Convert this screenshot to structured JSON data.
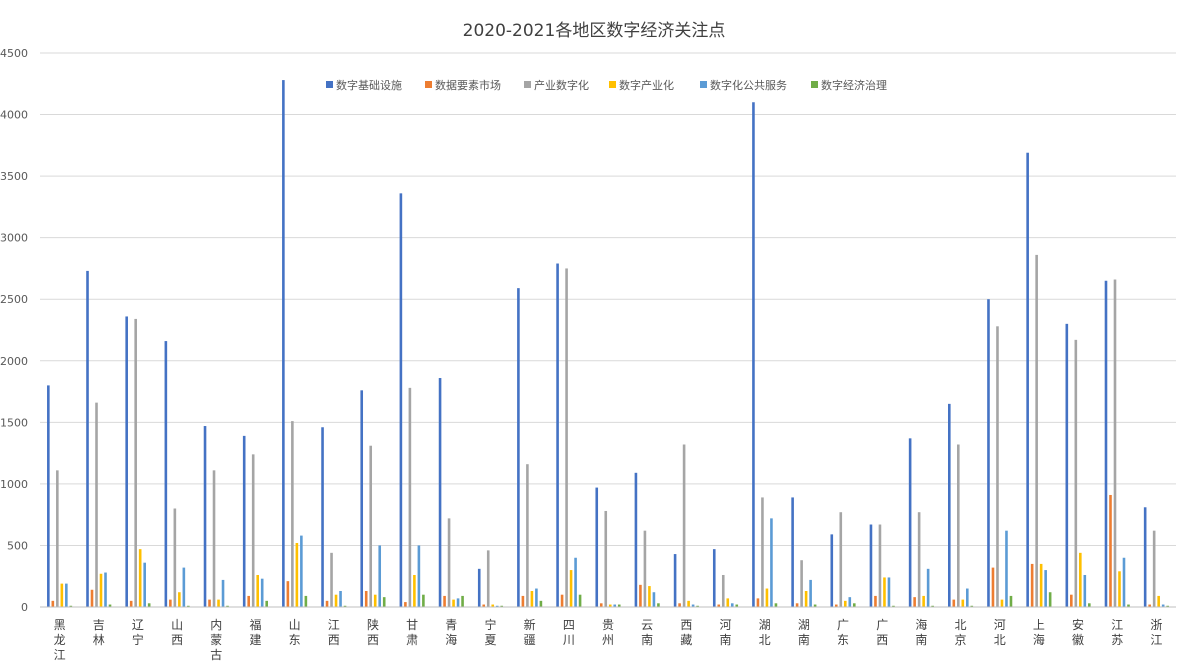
{
  "chart_data": {
    "type": "bar",
    "title": "2020-2021各地区数字经济关注点",
    "xlabel": "",
    "ylabel": "",
    "ylim": [
      0,
      4500
    ],
    "yticks": [
      0,
      500,
      1000,
      1500,
      2000,
      2500,
      3000,
      3500,
      4000,
      4500
    ],
    "grid": true,
    "legend_position": "top",
    "colors": [
      "#4472C4",
      "#ED7D31",
      "#A5A5A5",
      "#FFC000",
      "#5B9BD5",
      "#70AD47"
    ],
    "categories": [
      "黑龙江",
      "吉林",
      "辽宁",
      "山西",
      "内蒙古",
      "福建",
      "山东",
      "江西",
      "陕西",
      "甘肃",
      "青海",
      "宁夏",
      "新疆",
      "四川",
      "贵州",
      "云南",
      "西藏",
      "河南",
      "湖北",
      "湖南",
      "广东",
      "广西",
      "海南",
      "北京",
      "河北",
      "上海",
      "安徽",
      "江苏",
      "浙江"
    ],
    "series": [
      {
        "name": "数字基础设施",
        "values": [
          1800,
          2730,
          2360,
          2160,
          1470,
          1390,
          4280,
          1460,
          1760,
          3360,
          1860,
          310,
          2590,
          2790,
          970,
          1090,
          430,
          470,
          4100,
          890,
          590,
          670,
          1370,
          1650,
          2500,
          3690,
          2300,
          2650,
          810
        ]
      },
      {
        "name": "数据要素市场",
        "values": [
          50,
          140,
          50,
          60,
          60,
          90,
          210,
          50,
          130,
          40,
          90,
          20,
          90,
          100,
          30,
          180,
          30,
          20,
          70,
          30,
          20,
          90,
          80,
          60,
          320,
          350,
          100,
          910,
          20
        ]
      },
      {
        "name": "产业数字化",
        "values": [
          1110,
          1660,
          2340,
          800,
          1110,
          1240,
          1510,
          440,
          1310,
          1780,
          720,
          460,
          1160,
          2750,
          780,
          620,
          1320,
          260,
          890,
          380,
          770,
          670,
          770,
          1320,
          2280,
          2860,
          2170,
          2660,
          620
        ]
      },
      {
        "name": "数字产业化",
        "values": [
          190,
          270,
          470,
          120,
          60,
          260,
          520,
          100,
          100,
          260,
          60,
          20,
          130,
          300,
          20,
          170,
          50,
          70,
          150,
          130,
          50,
          240,
          90,
          60,
          60,
          350,
          440,
          290,
          90
        ]
      },
      {
        "name": "数字化公共服务",
        "values": [
          190,
          280,
          360,
          320,
          220,
          230,
          580,
          130,
          500,
          500,
          70,
          10,
          150,
          400,
          20,
          120,
          20,
          30,
          720,
          220,
          80,
          240,
          310,
          150,
          620,
          300,
          260,
          400,
          20
        ]
      },
      {
        "name": "数字经济治理",
        "values": [
          10,
          20,
          30,
          10,
          10,
          50,
          90,
          10,
          80,
          100,
          90,
          10,
          50,
          100,
          20,
          30,
          10,
          20,
          30,
          20,
          30,
          10,
          10,
          10,
          90,
          120,
          30,
          20,
          10
        ]
      }
    ]
  }
}
